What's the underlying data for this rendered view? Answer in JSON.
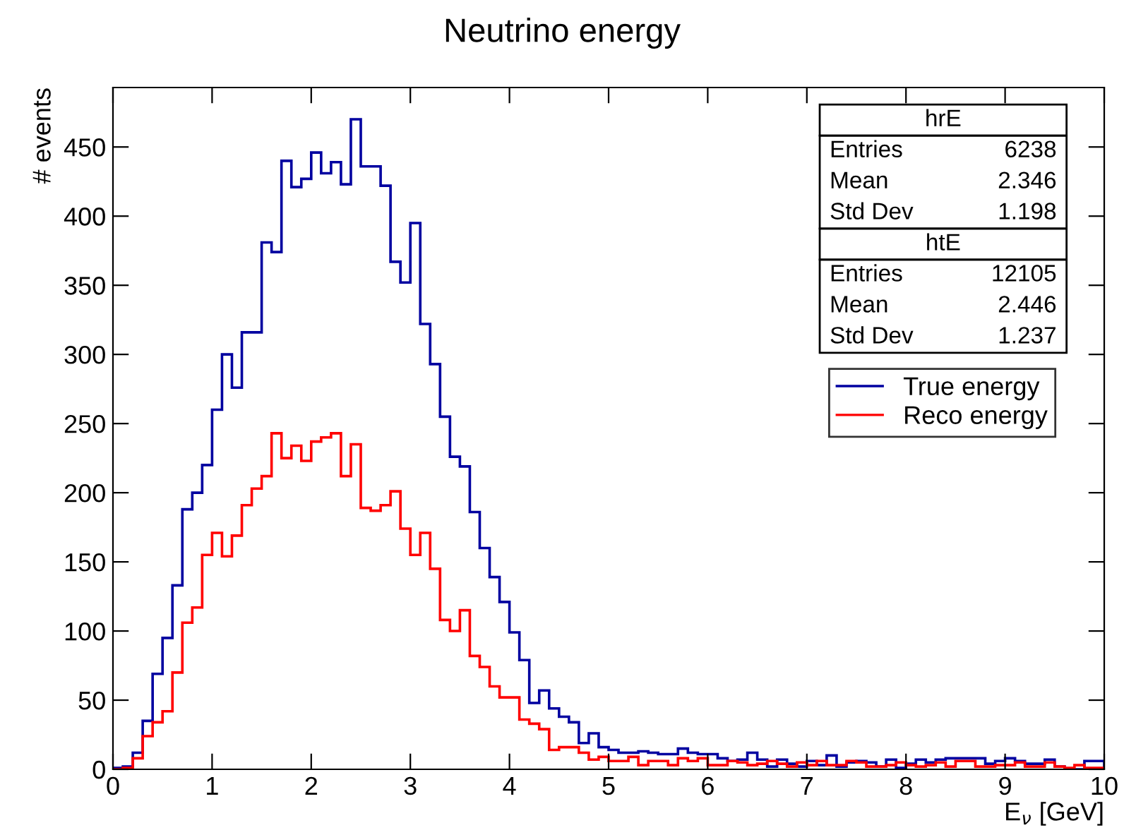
{
  "chart_data": {
    "type": "histogram",
    "title": "Neutrino energy",
    "xlabel": "E$_{ν}$ [GeV]",
    "ylabel": "# events",
    "bins": [
      0,
      0.1,
      0.2,
      0.3,
      0.4,
      0.5,
      0.6,
      0.7,
      0.8,
      0.9,
      1,
      1.1,
      1.2,
      1.3,
      1.4,
      1.5,
      1.6,
      1.7,
      1.8,
      1.9,
      2,
      2.1,
      2.2,
      2.3,
      2.4,
      2.5,
      2.6,
      2.7,
      2.8,
      2.9,
      3,
      3.1,
      3.2,
      3.3,
      3.4,
      3.5,
      3.6,
      3.7,
      3.8,
      3.9,
      4,
      4.1,
      4.2,
      4.3,
      4.4,
      4.5,
      4.6,
      4.7,
      4.8,
      4.9,
      5,
      5.1,
      5.2,
      5.3,
      5.4,
      5.5,
      5.6,
      5.7,
      5.8,
      5.9,
      6,
      6.1,
      6.2,
      6.3,
      6.4,
      6.5,
      6.6,
      6.7,
      6.8,
      6.9,
      7,
      7.1,
      7.2,
      7.3,
      7.4,
      7.5,
      7.6,
      7.7,
      7.8,
      7.9,
      8,
      8.1,
      8.2,
      8.3,
      8.4,
      8.5,
      8.6,
      8.7,
      8.8,
      8.9,
      9,
      9.1,
      9.2,
      9.3,
      9.4,
      9.5,
      9.6,
      9.7,
      9.8,
      9.9,
      10
    ],
    "series": [
      {
        "name": "True energy",
        "color": "#0000a0",
        "values": [
          1,
          2,
          12,
          35,
          69,
          95,
          133,
          188,
          200,
          220,
          260,
          300,
          276,
          316,
          316,
          381,
          374,
          440,
          421,
          427,
          446,
          431,
          439,
          423,
          470,
          436,
          436,
          422,
          367,
          352,
          395,
          322,
          293,
          255,
          226,
          219,
          186,
          160,
          139,
          121,
          99,
          79,
          48,
          57,
          44,
          38,
          34,
          19,
          26,
          16,
          14,
          12,
          12,
          13,
          12,
          11,
          11,
          15,
          12,
          11,
          11,
          8,
          6,
          7,
          12,
          7,
          2,
          7,
          4,
          2,
          6,
          3,
          10,
          2,
          5,
          6,
          5,
          2,
          7,
          1,
          4,
          7,
          5,
          7,
          8,
          8,
          8,
          8,
          4,
          6,
          8,
          6,
          4,
          4,
          7,
          2,
          0,
          0,
          6,
          6
        ]
      },
      {
        "name": "Reco energy",
        "color": "#ff0000",
        "values": [
          0,
          1,
          8,
          24,
          34,
          42,
          70,
          106,
          117,
          155,
          171,
          154,
          169,
          191,
          203,
          212,
          243,
          225,
          234,
          223,
          237,
          240,
          243,
          212,
          235,
          189,
          187,
          191,
          201,
          174,
          155,
          171,
          145,
          108,
          100,
          115,
          82,
          74,
          60,
          52,
          52,
          36,
          33,
          29,
          14,
          16,
          16,
          12,
          7,
          9,
          6,
          6,
          9,
          3,
          6,
          6,
          3,
          8,
          6,
          8,
          3,
          3,
          6,
          5,
          3,
          4,
          6,
          4,
          2,
          5,
          3,
          6,
          3,
          3,
          6,
          5,
          2,
          2,
          3,
          5,
          3,
          2,
          3,
          5,
          2,
          6,
          6,
          2,
          2,
          3,
          3,
          5,
          2,
          2,
          5,
          2,
          1,
          3,
          1,
          1
        ]
      }
    ],
    "xlim": [
      0,
      10
    ],
    "xticks": [
      0,
      1,
      2,
      3,
      4,
      5,
      6,
      7,
      8,
      9,
      10
    ],
    "ylim": [
      0,
      493
    ],
    "yticks": [
      0,
      50,
      100,
      150,
      200,
      250,
      300,
      350,
      400,
      450
    ],
    "grid": false,
    "legend": "top right",
    "annotations": [
      "hrE",
      "Entries",
      "6238",
      "Mean",
      "2.346",
      "Std Dev",
      "1.198",
      "htE",
      "Entries",
      "12105",
      "Mean",
      "2.446",
      "Std Dev",
      "1.237"
    ]
  }
}
